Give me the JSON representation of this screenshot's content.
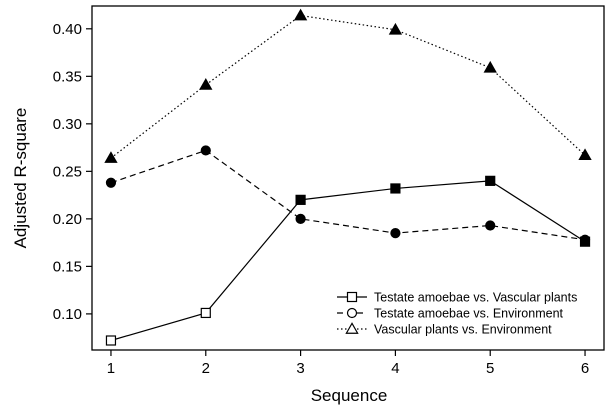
{
  "chart_data": {
    "type": "line",
    "title": "",
    "xlabel": "Sequence",
    "ylabel": "Adjusted R-square",
    "x": [
      1,
      2,
      3,
      4,
      5,
      6
    ],
    "xticks": [
      "1",
      "2",
      "3",
      "4",
      "5",
      "6"
    ],
    "yticks": [
      "0.10",
      "0.15",
      "0.20",
      "0.25",
      "0.30",
      "0.35",
      "0.40"
    ],
    "ylim": [
      0.062,
      0.424
    ],
    "xlim": [
      0.8,
      6.2
    ],
    "grid": false,
    "legend_position": "bottom-right",
    "series": [
      {
        "name": "Testate amoebae vs. Vascular plants",
        "values": [
          0.072,
          0.101,
          0.22,
          0.232,
          0.24,
          0.176
        ],
        "line_style": "solid",
        "marker": "square",
        "marker_fill": [
          "hollow",
          "hollow",
          "filled",
          "filled",
          "filled",
          "filled"
        ],
        "color": "#000000"
      },
      {
        "name": "Testate amoebae vs. Environment",
        "values": [
          0.238,
          0.272,
          0.2,
          0.185,
          0.193,
          0.178
        ],
        "line_style": "dashed",
        "marker": "circle",
        "marker_fill": [
          "filled",
          "filled",
          "filled",
          "filled",
          "filled",
          "filled"
        ],
        "color": "#000000"
      },
      {
        "name": "Vascular plants vs. Environment",
        "values": [
          0.264,
          0.341,
          0.414,
          0.399,
          0.359,
          0.267
        ],
        "line_style": "dotted",
        "marker": "triangle",
        "marker_fill": [
          "filled",
          "filled",
          "filled",
          "filled",
          "filled",
          "filled"
        ],
        "color": "#000000"
      }
    ]
  }
}
